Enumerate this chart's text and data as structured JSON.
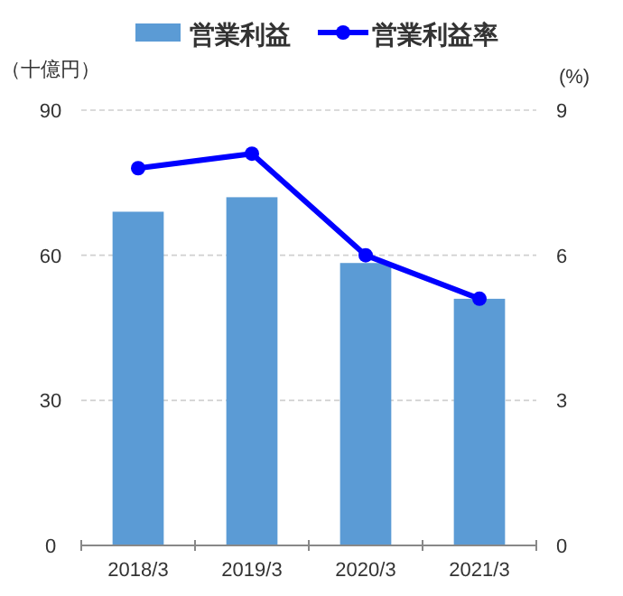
{
  "chart_data": {
    "type": "bar",
    "ylabel": "（十億円）",
    "y2label": "(%)",
    "categories": [
      "2018/3",
      "2019/3",
      "2020/3",
      "2021/3"
    ],
    "series": [
      {
        "name": "営業利益",
        "color": "#5b9bd5",
        "values": [
          69,
          72,
          58.4,
          51
        ]
      },
      {
        "name": "営業利益率",
        "type": "line",
        "axis": "y2",
        "color": "#0000ff",
        "marker": "circle",
        "values": [
          7.8,
          8.1,
          6.0,
          5.1
        ]
      }
    ],
    "ylim": [
      0,
      90
    ],
    "yticks": [
      0,
      30,
      60,
      90
    ],
    "y2lim": [
      0,
      9
    ],
    "y2ticks": [
      0,
      3,
      6,
      9
    ],
    "grid": "y",
    "legend": "top"
  }
}
